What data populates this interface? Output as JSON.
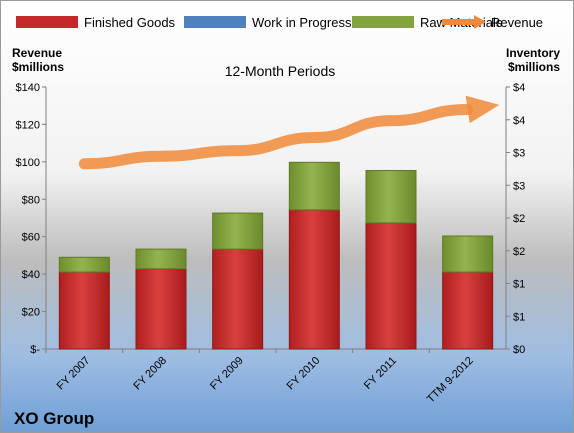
{
  "chart_data": {
    "type": "bar",
    "title": "12-Month Periods",
    "company": "XO Group",
    "left_axis_title": [
      "Revenue",
      "$millions"
    ],
    "right_axis_title": [
      "Inventory",
      "$millions"
    ],
    "categories": [
      "FY 2007",
      "FY 2008",
      "FY 2009",
      "FY 2010",
      "FY 2011",
      "TTM 9-2012"
    ],
    "stacked": true,
    "series": [
      {
        "name": "Finished Goods",
        "color": "#c42a2a",
        "values": [
          2.35,
          2.45,
          3.05,
          4.25,
          3.85,
          2.35
        ]
      },
      {
        "name": "Work in Progress",
        "color": "#4f81bd",
        "values": [
          0,
          0,
          0,
          0,
          0,
          0
        ]
      },
      {
        "name": "Raw Materials",
        "color": "#83a43c",
        "values": [
          0.45,
          0.6,
          1.1,
          1.45,
          1.6,
          1.1
        ]
      }
    ],
    "line_series": {
      "name": "Revenue",
      "color": "#f08a3a",
      "values": [
        99,
        103,
        106,
        113,
        122,
        128
      ],
      "axis": "left",
      "arrow": true
    },
    "left_axis": {
      "ylim": [
        0,
        140
      ],
      "ticks": [
        "$-",
        "$20",
        "$40",
        "$60",
        "$80",
        "$100",
        "$120",
        "$140"
      ]
    },
    "right_axis": {
      "ylim": [
        0,
        8
      ],
      "ticks": [
        "$0",
        "$1",
        "$1",
        "$2",
        "$2",
        "$3",
        "$3",
        "$4",
        "$4"
      ]
    },
    "legend": {
      "position": "top",
      "items": [
        "Finished Goods",
        "Work in Progress",
        "Raw Materials",
        "Revenue"
      ]
    },
    "grid": false,
    "background": {
      "top": "#ffffff",
      "bottom": "#6f9fd6"
    }
  }
}
